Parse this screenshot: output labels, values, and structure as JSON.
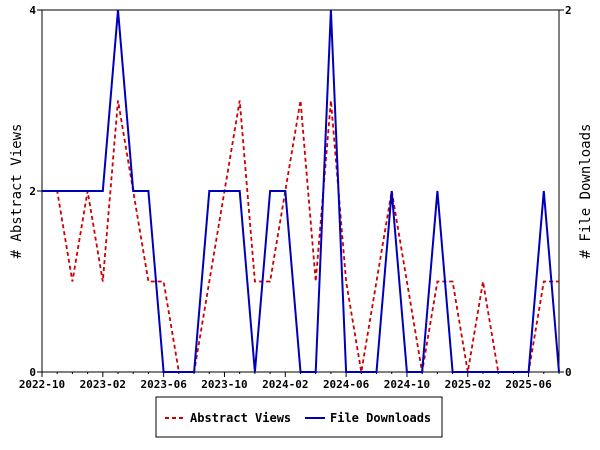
{
  "chart_data": {
    "type": "line",
    "title": "",
    "xlabel": "",
    "ylabel_left": "# Abstract Views",
    "ylabel_right": "# File Downloads",
    "x_tick_labels": [
      "2022-10",
      "2023-02",
      "2023-06",
      "2023-10",
      "2024-02",
      "2024-06",
      "2024-10",
      "2025-02",
      "2025-06"
    ],
    "x_tick_months": [
      0,
      4,
      8,
      12,
      16,
      20,
      24,
      28,
      32
    ],
    "x_range_months": [
      0,
      34
    ],
    "x_origin_label": "2022-10",
    "ylim_left": [
      0,
      4
    ],
    "ylim_right": [
      0,
      2
    ],
    "y_ticks_left": [
      "0",
      "2",
      "4"
    ],
    "y_ticks_right": [
      "0",
      "2"
    ],
    "grid": false,
    "legend_position": "bottom",
    "series": [
      {
        "name": "Abstract Views",
        "axis": "left",
        "color": "#cc0000",
        "style": "dashed",
        "points": [
          [
            0,
            2
          ],
          [
            1,
            2
          ],
          [
            2,
            1
          ],
          [
            3,
            2
          ],
          [
            4,
            1
          ],
          [
            5,
            3
          ],
          [
            6,
            2
          ],
          [
            7,
            1
          ],
          [
            8,
            1
          ],
          [
            9,
            0
          ],
          [
            10,
            0
          ],
          [
            11,
            1
          ],
          [
            12,
            2
          ],
          [
            13,
            3
          ],
          [
            14,
            1
          ],
          [
            15,
            1
          ],
          [
            16,
            2
          ],
          [
            17,
            3
          ],
          [
            18,
            1
          ],
          [
            19,
            3
          ],
          [
            20,
            1
          ],
          [
            21,
            0
          ],
          [
            22,
            1
          ],
          [
            23,
            2
          ],
          [
            24,
            1
          ],
          [
            25,
            0
          ],
          [
            26,
            1
          ],
          [
            27,
            1
          ],
          [
            28,
            0
          ],
          [
            29,
            1
          ],
          [
            30,
            0
          ],
          [
            31,
            0
          ],
          [
            32,
            0
          ],
          [
            33,
            1
          ],
          [
            34,
            1
          ]
        ]
      },
      {
        "name": "File Downloads",
        "axis": "right",
        "color": "#0000bb",
        "style": "solid",
        "points": [
          [
            0,
            1
          ],
          [
            1,
            1
          ],
          [
            2,
            1
          ],
          [
            3,
            1
          ],
          [
            4,
            1
          ],
          [
            5,
            2
          ],
          [
            6,
            1
          ],
          [
            7,
            1
          ],
          [
            8,
            0
          ],
          [
            9,
            0
          ],
          [
            10,
            0
          ],
          [
            11,
            1
          ],
          [
            12,
            1
          ],
          [
            13,
            1
          ],
          [
            14,
            0
          ],
          [
            15,
            1
          ],
          [
            16,
            1
          ],
          [
            17,
            0
          ],
          [
            18,
            0
          ],
          [
            19,
            2
          ],
          [
            20,
            0
          ],
          [
            21,
            0
          ],
          [
            22,
            0
          ],
          [
            23,
            1
          ],
          [
            24,
            0
          ],
          [
            25,
            0
          ],
          [
            26,
            1
          ],
          [
            27,
            0
          ],
          [
            28,
            0
          ],
          [
            29,
            0
          ],
          [
            30,
            0
          ],
          [
            31,
            0
          ],
          [
            32,
            0
          ],
          [
            33,
            1
          ],
          [
            34,
            0
          ]
        ]
      }
    ]
  },
  "legend": {
    "views_label": "Abstract Views",
    "downloads_label": "File Downloads"
  }
}
